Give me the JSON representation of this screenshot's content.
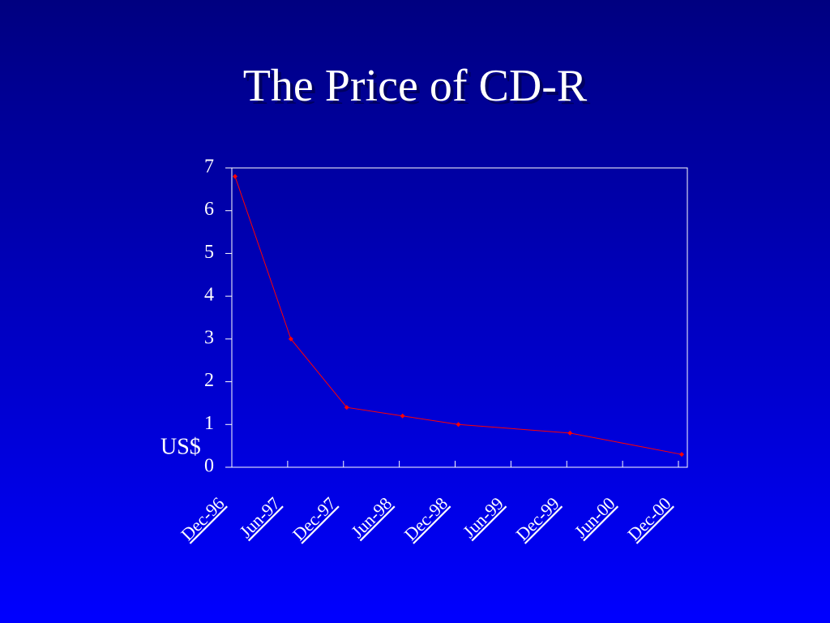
{
  "chart_data": {
    "type": "line",
    "title": "The Price of CD-R",
    "y_label": "US$",
    "categories": [
      "Dec-96",
      "Jun-97",
      "Dec-97",
      "Jun-98",
      "Dec-98",
      "Jun-99",
      "Dec-99",
      "Jun-00",
      "Dec-00"
    ],
    "series": [
      {
        "x": [
          "Dec-96",
          "Jun-97",
          "Dec-97",
          "Jun-98",
          "Dec-98",
          "Dec-99",
          "Dec-00"
        ],
        "values": [
          6.8,
          3.0,
          1.4,
          1.2,
          1.0,
          0.8,
          0.3
        ],
        "color": "#ff0000"
      }
    ],
    "ylim": [
      0,
      7
    ],
    "yticks": [
      0,
      1,
      2,
      3,
      4,
      5,
      6,
      7
    ]
  }
}
